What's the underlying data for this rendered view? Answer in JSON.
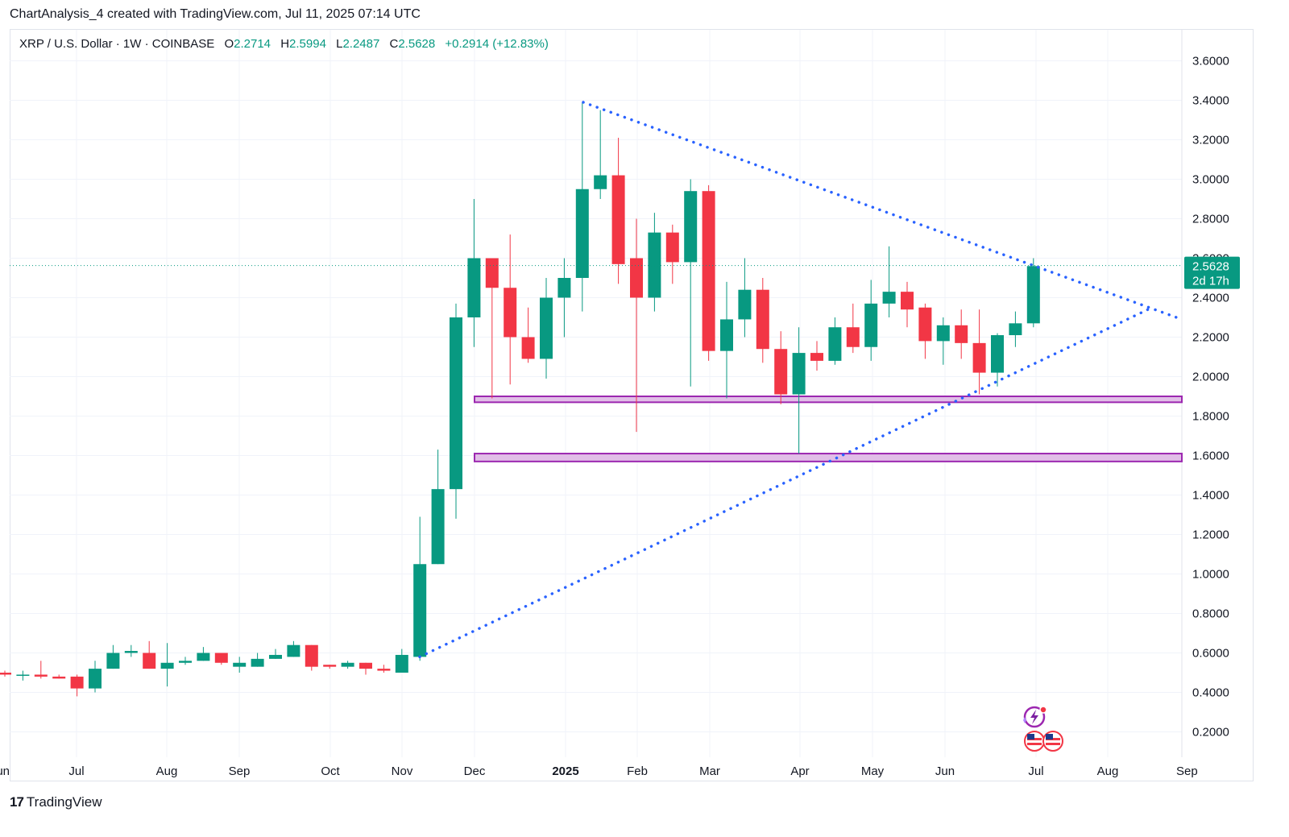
{
  "caption": "ChartAnalysis_4 created with TradingView.com, Jul 11, 2025 07:14 UTC",
  "legend": {
    "symbol": "XRP / U.S. Dollar · 1W · COINBASE",
    "open_label": "O",
    "open": "2.2714",
    "high_label": "H",
    "high": "2.5994",
    "low_label": "L",
    "low": "2.2487",
    "close_label": "C",
    "close": "2.5628",
    "change": "+0.2914 (+12.83%)"
  },
  "price_tag": {
    "price": "2.5628",
    "countdown": "2d 17h"
  },
  "brand": "TradingView",
  "icons": [
    "tradingview-logo-icon",
    "lightning-icon",
    "us-flag-icon"
  ],
  "colors": {
    "up": "#089981",
    "down": "#f23645",
    "trendline": "#2962ff",
    "zone": "#9c27b0",
    "zone_fill": "#e1bee7"
  },
  "chart_data": {
    "type": "candlestick",
    "title": "XRP / U.S. Dollar · 1W · COINBASE",
    "x_tick_labels": [
      "Jun",
      "Jul",
      "Aug",
      "Sep",
      "Oct",
      "Nov",
      "Dec",
      "2025",
      "Feb",
      "Mar",
      "Apr",
      "May",
      "Jun",
      "Jul",
      "Aug",
      "Sep"
    ],
    "y_tick_labels": [
      "0.2000",
      "0.4000",
      "0.6000",
      "0.8000",
      "1.0000",
      "1.2000",
      "1.4000",
      "1.6000",
      "1.8000",
      "2.0000",
      "2.2000",
      "2.4000",
      "2.6000",
      "2.8000",
      "3.0000",
      "3.2000",
      "3.4000",
      "3.6000"
    ],
    "ylim": [
      0.06,
      3.75
    ],
    "grid": true,
    "candles": [
      {
        "o": 0.5,
        "h": 0.51,
        "l": 0.48,
        "c": 0.49
      },
      {
        "o": 0.49,
        "h": 0.51,
        "l": 0.46,
        "c": 0.49
      },
      {
        "o": 0.49,
        "h": 0.56,
        "l": 0.47,
        "c": 0.48
      },
      {
        "o": 0.48,
        "h": 0.49,
        "l": 0.47,
        "c": 0.47
      },
      {
        "o": 0.48,
        "h": 0.49,
        "l": 0.38,
        "c": 0.42
      },
      {
        "o": 0.42,
        "h": 0.56,
        "l": 0.4,
        "c": 0.52
      },
      {
        "o": 0.52,
        "h": 0.64,
        "l": 0.52,
        "c": 0.6
      },
      {
        "o": 0.6,
        "h": 0.64,
        "l": 0.58,
        "c": 0.61
      },
      {
        "o": 0.6,
        "h": 0.66,
        "l": 0.52,
        "c": 0.52
      },
      {
        "o": 0.52,
        "h": 0.65,
        "l": 0.43,
        "c": 0.55
      },
      {
        "o": 0.55,
        "h": 0.58,
        "l": 0.54,
        "c": 0.56
      },
      {
        "o": 0.56,
        "h": 0.63,
        "l": 0.56,
        "c": 0.6
      },
      {
        "o": 0.6,
        "h": 0.6,
        "l": 0.54,
        "c": 0.55
      },
      {
        "o": 0.53,
        "h": 0.58,
        "l": 0.5,
        "c": 0.55
      },
      {
        "o": 0.53,
        "h": 0.6,
        "l": 0.53,
        "c": 0.57
      },
      {
        "o": 0.57,
        "h": 0.62,
        "l": 0.57,
        "c": 0.59
      },
      {
        "o": 0.58,
        "h": 0.66,
        "l": 0.58,
        "c": 0.64
      },
      {
        "o": 0.64,
        "h": 0.64,
        "l": 0.51,
        "c": 0.53
      },
      {
        "o": 0.54,
        "h": 0.54,
        "l": 0.52,
        "c": 0.53
      },
      {
        "o": 0.53,
        "h": 0.56,
        "l": 0.52,
        "c": 0.55
      },
      {
        "o": 0.55,
        "h": 0.55,
        "l": 0.49,
        "c": 0.52
      },
      {
        "o": 0.52,
        "h": 0.54,
        "l": 0.5,
        "c": 0.51
      },
      {
        "o": 0.5,
        "h": 0.62,
        "l": 0.5,
        "c": 0.59
      },
      {
        "o": 0.58,
        "h": 1.29,
        "l": 0.56,
        "c": 1.05
      },
      {
        "o": 1.05,
        "h": 1.63,
        "l": 1.05,
        "c": 1.43
      },
      {
        "o": 1.43,
        "h": 2.37,
        "l": 1.28,
        "c": 2.3
      },
      {
        "o": 2.3,
        "h": 2.9,
        "l": 2.15,
        "c": 2.6
      },
      {
        "o": 2.6,
        "h": 2.6,
        "l": 1.89,
        "c": 2.45
      },
      {
        "o": 2.45,
        "h": 2.72,
        "l": 1.96,
        "c": 2.2
      },
      {
        "o": 2.2,
        "h": 2.35,
        "l": 2.07,
        "c": 2.09
      },
      {
        "o": 2.09,
        "h": 2.5,
        "l": 1.99,
        "c": 2.4
      },
      {
        "o": 2.4,
        "h": 2.6,
        "l": 2.2,
        "c": 2.5
      },
      {
        "o": 2.5,
        "h": 3.39,
        "l": 2.33,
        "c": 2.95
      },
      {
        "o": 2.95,
        "h": 3.35,
        "l": 2.9,
        "c": 3.02
      },
      {
        "o": 3.02,
        "h": 3.21,
        "l": 2.47,
        "c": 2.57
      },
      {
        "o": 2.6,
        "h": 2.8,
        "l": 1.72,
        "c": 2.4
      },
      {
        "o": 2.4,
        "h": 2.83,
        "l": 2.33,
        "c": 2.73
      },
      {
        "o": 2.73,
        "h": 2.77,
        "l": 2.47,
        "c": 2.58
      },
      {
        "o": 2.58,
        "h": 3.0,
        "l": 1.95,
        "c": 2.94
      },
      {
        "o": 2.94,
        "h": 2.97,
        "l": 2.08,
        "c": 2.13
      },
      {
        "o": 2.13,
        "h": 2.48,
        "l": 1.89,
        "c": 2.29
      },
      {
        "o": 2.29,
        "h": 2.6,
        "l": 2.2,
        "c": 2.44
      },
      {
        "o": 2.44,
        "h": 2.5,
        "l": 2.07,
        "c": 2.14
      },
      {
        "o": 2.14,
        "h": 2.23,
        "l": 1.86,
        "c": 1.91
      },
      {
        "o": 1.91,
        "h": 2.25,
        "l": 1.61,
        "c": 2.12
      },
      {
        "o": 2.12,
        "h": 2.18,
        "l": 2.03,
        "c": 2.08
      },
      {
        "o": 2.08,
        "h": 2.3,
        "l": 2.06,
        "c": 2.25
      },
      {
        "o": 2.25,
        "h": 2.37,
        "l": 2.12,
        "c": 2.15
      },
      {
        "o": 2.15,
        "h": 2.49,
        "l": 2.08,
        "c": 2.37
      },
      {
        "o": 2.37,
        "h": 2.66,
        "l": 2.3,
        "c": 2.43
      },
      {
        "o": 2.43,
        "h": 2.48,
        "l": 2.25,
        "c": 2.34
      },
      {
        "o": 2.35,
        "h": 2.37,
        "l": 2.09,
        "c": 2.18
      },
      {
        "o": 2.18,
        "h": 2.3,
        "l": 2.06,
        "c": 2.26
      },
      {
        "o": 2.26,
        "h": 2.34,
        "l": 2.09,
        "c": 2.17
      },
      {
        "o": 2.17,
        "h": 2.34,
        "l": 1.91,
        "c": 2.02
      },
      {
        "o": 2.02,
        "h": 2.22,
        "l": 1.95,
        "c": 2.21
      },
      {
        "o": 2.21,
        "h": 2.33,
        "l": 2.15,
        "c": 2.27
      },
      {
        "o": 2.27,
        "h": 2.6,
        "l": 2.25,
        "c": 2.56
      }
    ],
    "current_price": 2.5628,
    "trendlines": [
      {
        "name": "descending",
        "from_price": 3.39,
        "to_price": 2.29
      },
      {
        "name": "ascending",
        "from_price": 0.58,
        "to_price": 2.35
      }
    ],
    "zones": [
      {
        "low": 1.87,
        "high": 1.9
      },
      {
        "low": 1.57,
        "high": 1.61
      }
    ]
  }
}
